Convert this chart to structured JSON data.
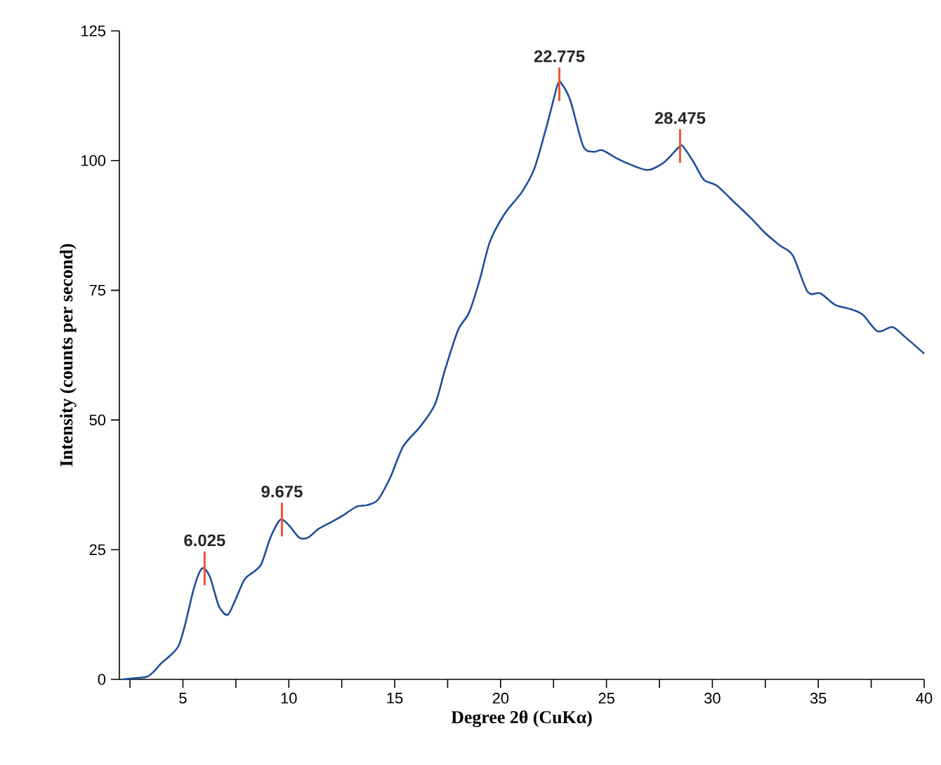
{
  "chart_data": {
    "type": "line",
    "xlabel": "Degree 2θ (CuKα)",
    "ylabel": "Intensity (counts per second)",
    "xlim": [
      2,
      40
    ],
    "ylim": [
      0,
      125
    ],
    "xticks": [
      {
        "value": 2.5,
        "label": null
      },
      5,
      {
        "value": 7.5,
        "label": null
      },
      10,
      {
        "value": 12.5,
        "label": null
      },
      15,
      {
        "value": 17.5,
        "label": null
      },
      20,
      {
        "value": 22.5,
        "label": null
      },
      25,
      {
        "value": 27.5,
        "label": null
      },
      30,
      {
        "value": 32.5,
        "label": null
      },
      35,
      {
        "value": 37.5,
        "label": null
      },
      40
    ],
    "yticks": [
      0,
      25,
      50,
      75,
      100,
      125
    ],
    "series": [
      {
        "color": "#1f4e9c",
        "x": [
          2.15,
          2.9,
          3.3,
          3.6,
          4.0,
          4.4,
          4.8,
          5.1,
          5.5,
          5.8,
          6.0,
          6.3,
          6.7,
          7.1,
          7.4,
          7.9,
          8.3,
          8.7,
          9.1,
          9.5,
          9.7,
          10.05,
          10.5,
          10.9,
          11.4,
          12.0,
          12.6,
          13.2,
          13.7,
          14.2,
          14.8,
          15.4,
          16.2,
          16.9,
          17.4,
          18.0,
          18.5,
          19.0,
          19.5,
          20.2,
          21.0,
          21.6,
          22.2,
          22.7,
          22.9,
          23.3,
          23.9,
          24.4,
          24.8,
          25.5,
          26.4,
          27.0,
          27.7,
          28.4,
          28.6,
          29.1,
          29.6,
          30.2,
          30.9,
          31.8,
          32.5,
          33.2,
          33.8,
          34.5,
          35.1,
          35.8,
          36.5,
          37.1,
          37.8,
          38.5,
          39.1,
          40
        ],
        "values": [
          0,
          0.3,
          0.5,
          1.4,
          3.2,
          4.6,
          6.5,
          10.5,
          17.3,
          20.8,
          21.4,
          19.5,
          14.1,
          12.4,
          14.6,
          19.2,
          20.6,
          22.2,
          27,
          30.3,
          30.8,
          29.5,
          27.3,
          27.3,
          29,
          30.3,
          31.7,
          33.3,
          33.6,
          34.6,
          39,
          44.9,
          48.7,
          53,
          60,
          67.4,
          70.6,
          76.8,
          84.4,
          89.8,
          93.9,
          98.5,
          107,
          114.7,
          114.7,
          111.5,
          102.8,
          101.7,
          102,
          100.4,
          98.8,
          98.2,
          99.6,
          102.5,
          102.8,
          99.8,
          96.3,
          95.2,
          92.5,
          89,
          86,
          83.6,
          81.7,
          74.7,
          74.4,
          72.2,
          71.4,
          70.3,
          67.1,
          67.9,
          66,
          62.8
        ]
      }
    ],
    "annotations": [
      {
        "text": "6.025",
        "x": 6.025,
        "y": 21.4
      },
      {
        "text": "9.675",
        "x": 9.675,
        "y": 30.8
      },
      {
        "text": "22.775",
        "x": 22.775,
        "y": 114.7
      },
      {
        "text": "28.475",
        "x": 28.475,
        "y": 102.8
      }
    ]
  }
}
